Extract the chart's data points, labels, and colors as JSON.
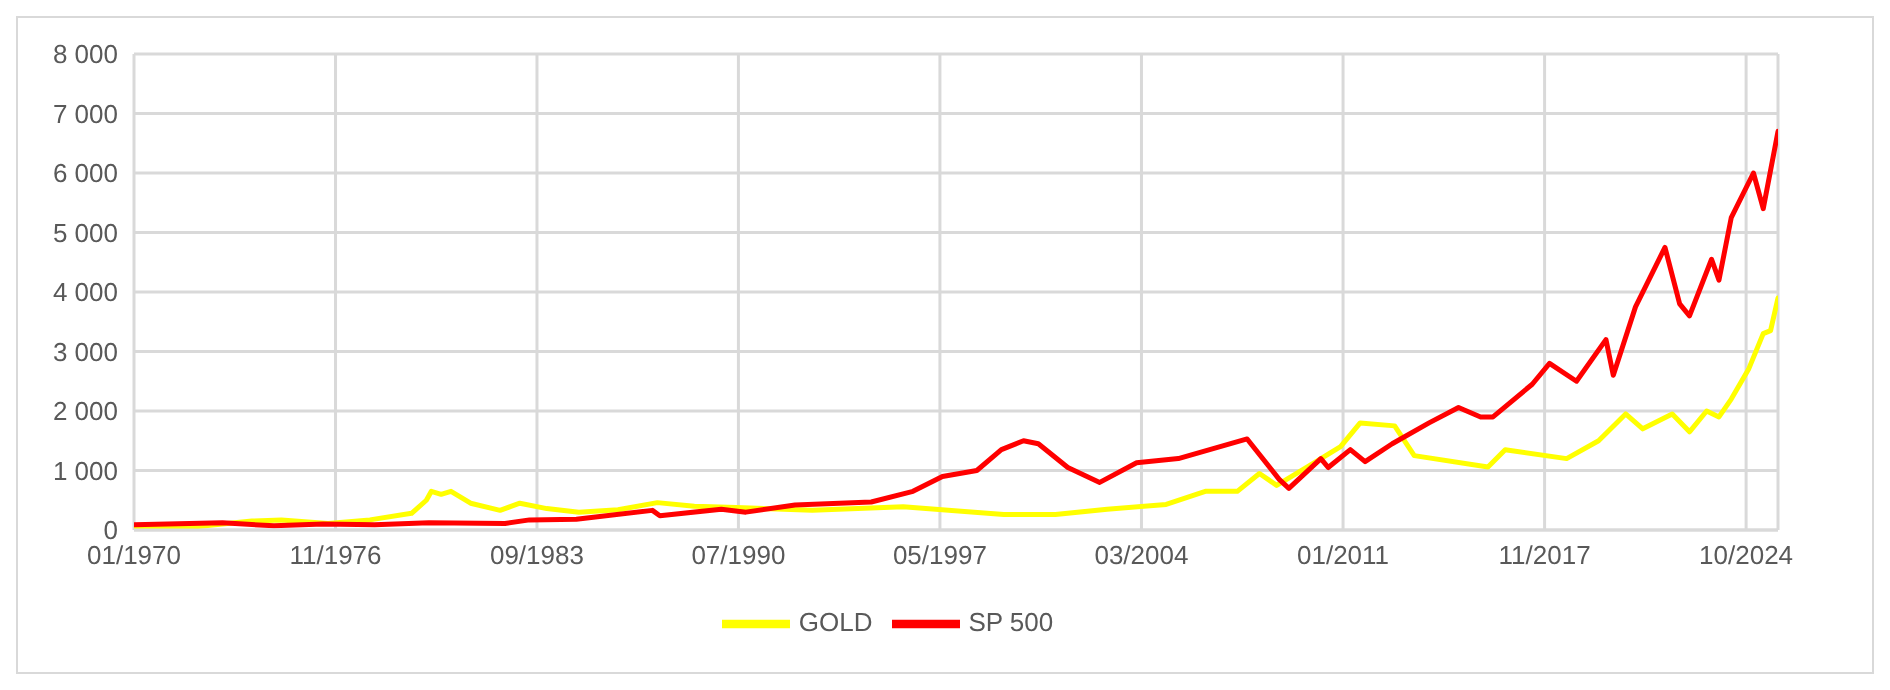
{
  "chart_data": {
    "type": "line",
    "xlim": [
      "1970-01",
      "2025-10"
    ],
    "xticks": [
      {
        "value": "1970-01",
        "label": "01/1970"
      },
      {
        "value": "1976-11",
        "label": "11/1976"
      },
      {
        "value": "1983-09",
        "label": "09/1983"
      },
      {
        "value": "1990-07",
        "label": "07/1990"
      },
      {
        "value": "1997-05",
        "label": "05/1997"
      },
      {
        "value": "2004-03",
        "label": "03/2004"
      },
      {
        "value": "2011-01",
        "label": "01/2011"
      },
      {
        "value": "2017-11",
        "label": "11/2017"
      },
      {
        "value": "2024-09",
        "label": "10/2024"
      }
    ],
    "ylim": [
      0,
      8000
    ],
    "yticks": [
      0,
      {
        "value": 1000,
        "label": "1 000"
      },
      {
        "value": 2000,
        "label": "2 000"
      },
      {
        "value": 3000,
        "label": "3 000"
      },
      {
        "value": 4000,
        "label": "4 000"
      },
      {
        "value": 5000,
        "label": "5 000"
      },
      {
        "value": 6000,
        "label": "6 000"
      },
      {
        "value": 7000,
        "label": "7 000"
      },
      {
        "value": 8000,
        "label": "8 000"
      }
    ],
    "grid": true,
    "legend": "bottom",
    "marker": "none",
    "line_style": "solid",
    "series": [
      {
        "name": "GOLD",
        "color": "#ffff00",
        "x": [
          "1970-01",
          "1972-01",
          "1974-01",
          "1975-01",
          "1976-08",
          "1978-01",
          "1979-06",
          "1979-12",
          "1980-02",
          "1980-06",
          "1980-10",
          "1981-06",
          "1982-06",
          "1983-02",
          "1984-01",
          "1985-02",
          "1986-06",
          "1987-10",
          "1989-01",
          "1990-06",
          "1993-01",
          "1996-02",
          "1999-07",
          "2001-04",
          "2003-01",
          "2005-01",
          "2006-05",
          "2007-06",
          "2008-03",
          "2008-10",
          "2009-12",
          "2010-12",
          "2011-08",
          "2012-10",
          "2013-06",
          "2015-12",
          "2016-07",
          "2018-08",
          "2019-09",
          "2020-08",
          "2021-03",
          "2022-03",
          "2022-10",
          "2023-05",
          "2023-10",
          "2024-03",
          "2024-10",
          "2025-04",
          "2025-07",
          "2025-10"
        ],
        "values": [
          40,
          50,
          150,
          170,
          110,
          170,
          280,
          500,
          650,
          600,
          650,
          450,
          330,
          450,
          360,
          300,
          340,
          460,
          400,
          380,
          330,
          390,
          260,
          260,
          350,
          430,
          650,
          650,
          950,
          750,
          1100,
          1400,
          1800,
          1750,
          1250,
          1060,
          1350,
          1200,
          1500,
          1950,
          1700,
          1950,
          1650,
          2000,
          1900,
          2200,
          2700,
          3300,
          3350,
          3900
        ]
      },
      {
        "name": "SP 500",
        "color": "#ff0000",
        "x": [
          "1970-01",
          "1973-01",
          "1974-10",
          "1976-06",
          "1978-03",
          "1980-01",
          "1982-08",
          "1983-06",
          "1985-01",
          "1987-08",
          "1987-11",
          "1989-12",
          "1990-10",
          "1992-06",
          "1995-01",
          "1996-06",
          "1997-06",
          "1998-08",
          "1999-06",
          "2000-03",
          "2000-09",
          "2001-09",
          "2002-10",
          "2004-01",
          "2005-06",
          "2007-10",
          "2008-11",
          "2009-03",
          "2010-04",
          "2010-07",
          "2011-04",
          "2011-10",
          "2012-09",
          "2013-12",
          "2014-12",
          "2015-09",
          "2016-02",
          "2017-06",
          "2018-01",
          "2018-12",
          "2019-12",
          "2020-03",
          "2020-12",
          "2021-12",
          "2022-06",
          "2022-10",
          "2023-07",
          "2023-10",
          "2024-03",
          "2024-12",
          "2025-04",
          "2025-10"
        ],
        "values": [
          90,
          120,
          70,
          100,
          90,
          120,
          110,
          170,
          180,
          330,
          240,
          350,
          300,
          420,
          470,
          650,
          900,
          1000,
          1350,
          1500,
          1450,
          1050,
          800,
          1130,
          1200,
          1530,
          850,
          700,
          1200,
          1050,
          1350,
          1150,
          1450,
          1800,
          2060,
          1900,
          1900,
          2450,
          2800,
          2500,
          3200,
          2600,
          3750,
          4750,
          3800,
          3600,
          4550,
          4200,
          5250,
          6000,
          5400,
          6700
        ]
      }
    ]
  }
}
